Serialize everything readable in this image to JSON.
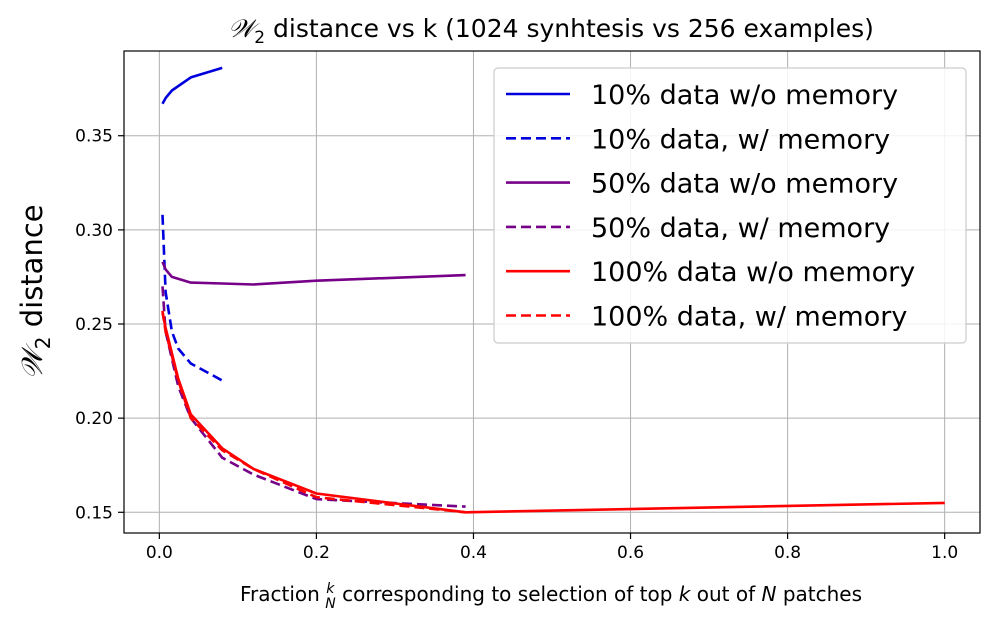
{
  "chart_data": {
    "type": "line",
    "title": "𝒲₂ distance vs k (1024 synhtesis vs 256 examples)",
    "title_parts": {
      "symbol": "𝒲",
      "subscript": "2",
      "rest": " distance vs k (1024 synhtesis vs 256 examples)"
    },
    "xlabel": "Fraction k/N corresponding to selection of top k out of N patches",
    "xlabel_parts": {
      "pre": "Fraction ",
      "frac_num": "k",
      "frac_den": "N",
      "mid1": " corresponding to selection of top ",
      "k": "k",
      "mid2": " out of ",
      "n": "N",
      "post": " patches"
    },
    "ylabel": "𝒲₂ distance",
    "ylabel_parts": {
      "symbol": "𝒲",
      "subscript": "2",
      "rest": " distance"
    },
    "xlim": [
      -0.045,
      1.045
    ],
    "ylim": [
      0.139,
      0.395
    ],
    "xticks": [
      0.0,
      0.2,
      0.4,
      0.6,
      0.8,
      1.0
    ],
    "xtick_labels": [
      "0.0",
      "0.2",
      "0.4",
      "0.6",
      "0.8",
      "1.0"
    ],
    "yticks": [
      0.15,
      0.2,
      0.25,
      0.3,
      0.35
    ],
    "ytick_labels": [
      "0.15",
      "0.20",
      "0.25",
      "0.30",
      "0.35"
    ],
    "grid": true,
    "legend_position": "top-right",
    "series": [
      {
        "name": "10% data w/o memory",
        "color": "#0000dd",
        "style": "solid",
        "x": [
          0.004,
          0.008,
          0.016,
          0.04,
          0.08
        ],
        "y": [
          0.367,
          0.37,
          0.374,
          0.381,
          0.386
        ]
      },
      {
        "name": "10% data, w/ memory",
        "color": "#0000dd",
        "style": "dashed",
        "x": [
          0.004,
          0.008,
          0.016,
          0.024,
          0.04,
          0.08
        ],
        "y": [
          0.308,
          0.267,
          0.246,
          0.237,
          0.229,
          0.22
        ]
      },
      {
        "name": "50% data w/o memory",
        "color": "#770088",
        "style": "solid",
        "x": [
          0.004,
          0.008,
          0.016,
          0.04,
          0.08,
          0.12,
          0.2,
          0.39
        ],
        "y": [
          0.283,
          0.279,
          0.275,
          0.272,
          0.2715,
          0.271,
          0.273,
          0.276
        ]
      },
      {
        "name": "50% data, w/ memory",
        "color": "#770088",
        "style": "dashed",
        "x": [
          0.004,
          0.008,
          0.024,
          0.04,
          0.08,
          0.12,
          0.2,
          0.39
        ],
        "y": [
          0.27,
          0.246,
          0.217,
          0.2,
          0.179,
          0.17,
          0.157,
          0.153
        ]
      },
      {
        "name": "100% data w/o memory",
        "color": "#ff0000",
        "style": "solid",
        "x": [
          0.004,
          0.008,
          0.024,
          0.04,
          0.08,
          0.12,
          0.2,
          0.39,
          1.0
        ],
        "y": [
          0.256,
          0.248,
          0.221,
          0.202,
          0.184,
          0.173,
          0.16,
          0.15,
          0.155
        ]
      },
      {
        "name": "100% data, w/ memory",
        "color": "#ff0000",
        "style": "dashed",
        "x": [
          0.004,
          0.008,
          0.024,
          0.04,
          0.08,
          0.12,
          0.2,
          0.39
        ],
        "y": [
          0.257,
          0.246,
          0.22,
          0.2,
          0.183,
          0.173,
          0.158,
          0.15
        ]
      }
    ]
  }
}
